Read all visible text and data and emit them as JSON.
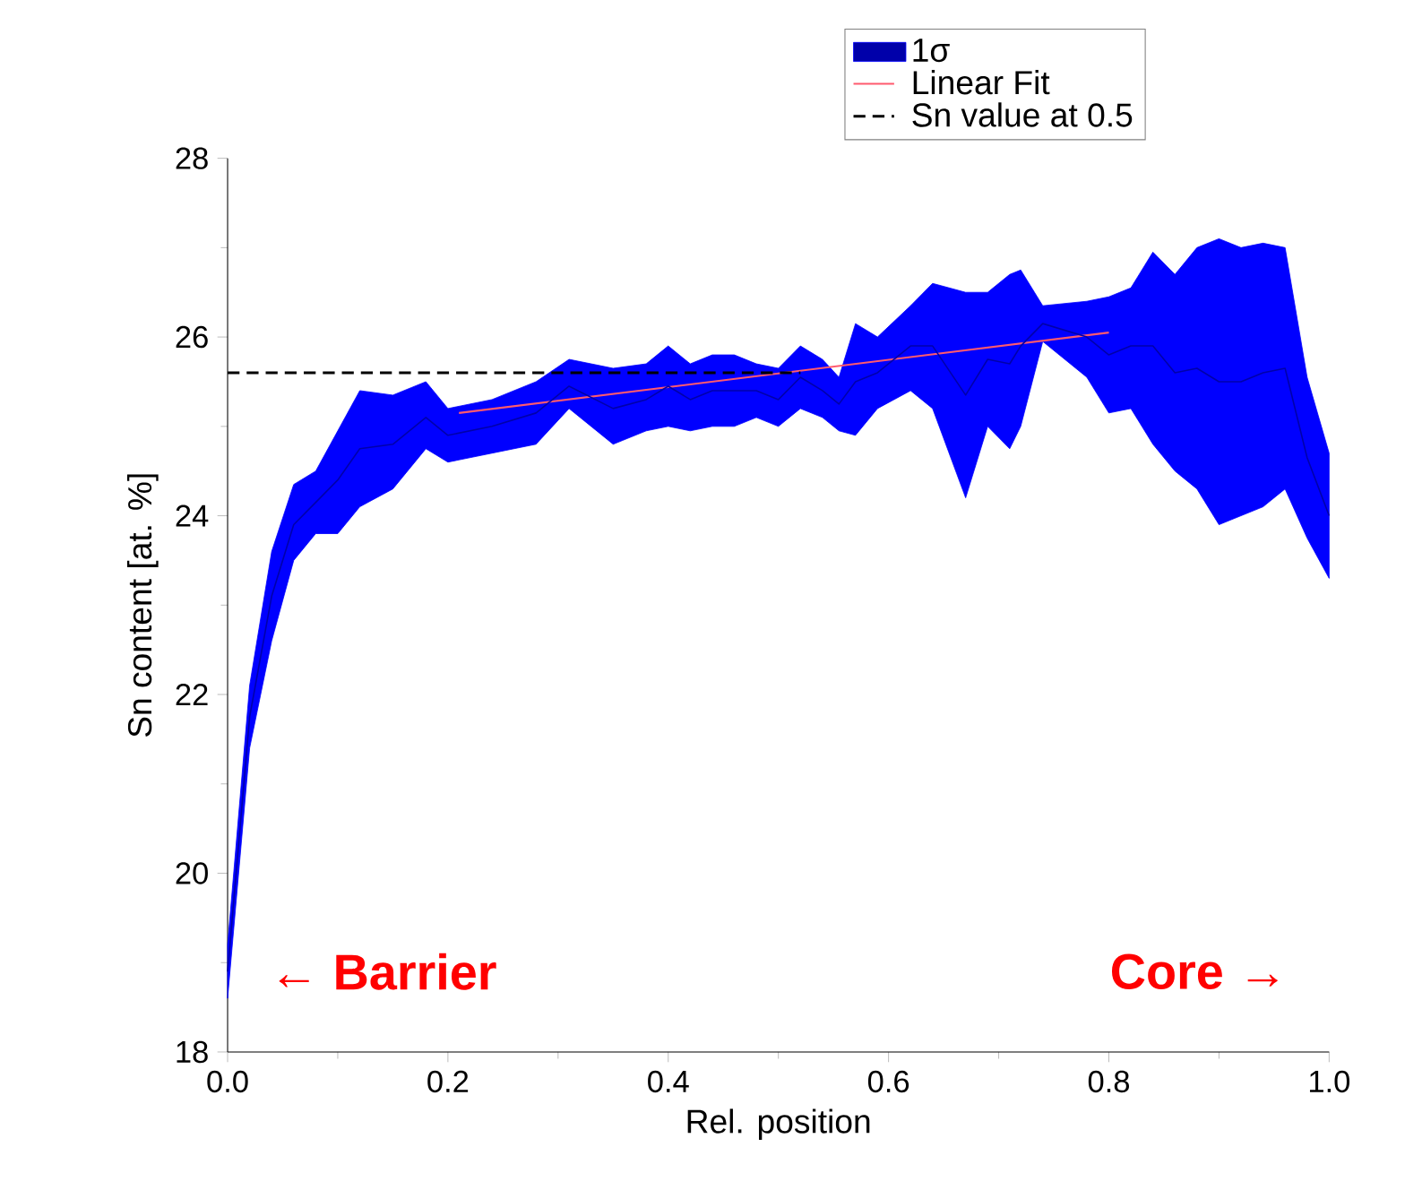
{
  "chart_data": {
    "type": "line",
    "xlabel": "Rel. position",
    "ylabel": "Sn content [at. %]",
    "xlim": [
      0,
      1
    ],
    "ylim": [
      18,
      28
    ],
    "xticks": [
      {
        "value": 0,
        "label": "0.0"
      },
      {
        "value": 0.2,
        "label": "0.2"
      },
      {
        "value": 0.4,
        "label": "0.4"
      },
      {
        "value": 0.6,
        "label": "0.6"
      },
      {
        "value": 0.8,
        "label": "0.8"
      },
      {
        "value": 1,
        "label": "1.0"
      }
    ],
    "yticks": [
      18,
      20,
      22,
      24,
      26,
      28
    ],
    "legend": "top right",
    "grid": false,
    "annotations": [
      "← **Barrier**",
      "**Core** →"
    ],
    "series": [
      {
        "name": "1σ",
        "color": "#0000aa",
        "x": [
          0,
          0.02,
          0.04,
          0.06,
          0.08,
          0.1,
          0.12,
          0.15,
          0.18,
          0.2,
          0.24,
          0.28,
          0.31,
          0.35,
          0.38,
          0.4,
          0.42,
          0.44,
          0.46,
          0.48,
          0.5,
          0.52,
          0.54,
          0.555,
          0.57,
          0.59,
          0.62,
          0.64,
          0.67,
          0.69,
          0.71,
          0.72,
          0.74,
          0.78,
          0.8,
          0.82,
          0.84,
          0.86,
          0.88,
          0.9,
          0.92,
          0.94,
          0.96,
          0.98,
          1.0
        ],
        "values": [
          18.9,
          21.75,
          23.1,
          23.9,
          24.15,
          24.4,
          24.75,
          24.8,
          25.1,
          24.9,
          25.0,
          25.15,
          25.45,
          25.2,
          25.3,
          25.45,
          25.3,
          25.4,
          25.4,
          25.4,
          25.3,
          25.55,
          25.4,
          25.25,
          25.5,
          25.6,
          25.9,
          25.9,
          25.35,
          25.75,
          25.7,
          25.9,
          26.15,
          26.0,
          25.8,
          25.9,
          25.9,
          25.6,
          25.65,
          25.5,
          25.5,
          25.6,
          25.65,
          24.65,
          24.0
        ],
        "lower": [
          18.6,
          21.4,
          22.6,
          23.5,
          23.8,
          23.8,
          24.1,
          24.3,
          24.75,
          24.6,
          24.7,
          24.8,
          25.2,
          24.8,
          24.95,
          25.0,
          24.95,
          25.0,
          25.0,
          25.1,
          25.0,
          25.2,
          25.1,
          24.95,
          24.9,
          25.2,
          25.4,
          25.2,
          24.2,
          25.0,
          24.75,
          25.0,
          25.95,
          25.55,
          25.15,
          25.2,
          24.8,
          24.5,
          24.3,
          23.9,
          24.0,
          24.1,
          24.3,
          23.75,
          23.3
        ],
        "upper": [
          19.2,
          22.1,
          23.6,
          24.35,
          24.5,
          24.95,
          25.4,
          25.35,
          25.5,
          25.2,
          25.3,
          25.5,
          25.75,
          25.65,
          25.7,
          25.9,
          25.7,
          25.8,
          25.8,
          25.7,
          25.65,
          25.9,
          25.75,
          25.55,
          26.15,
          26.0,
          26.35,
          26.6,
          26.5,
          26.5,
          26.7,
          26.75,
          26.35,
          26.4,
          26.45,
          26.55,
          26.95,
          26.7,
          27.0,
          27.1,
          27.0,
          27.05,
          27.0,
          25.55,
          24.7
        ]
      },
      {
        "name": "Linear Fit",
        "color": "#ff5a6e",
        "x": [
          0.21,
          0.8
        ],
        "values": [
          25.15,
          26.05
        ]
      },
      {
        "name": "Sn value at 0.5",
        "line_style": "dashed",
        "color": "#000000",
        "x": [
          0,
          0.52
        ],
        "values": [
          25.6,
          25.6
        ]
      }
    ]
  }
}
